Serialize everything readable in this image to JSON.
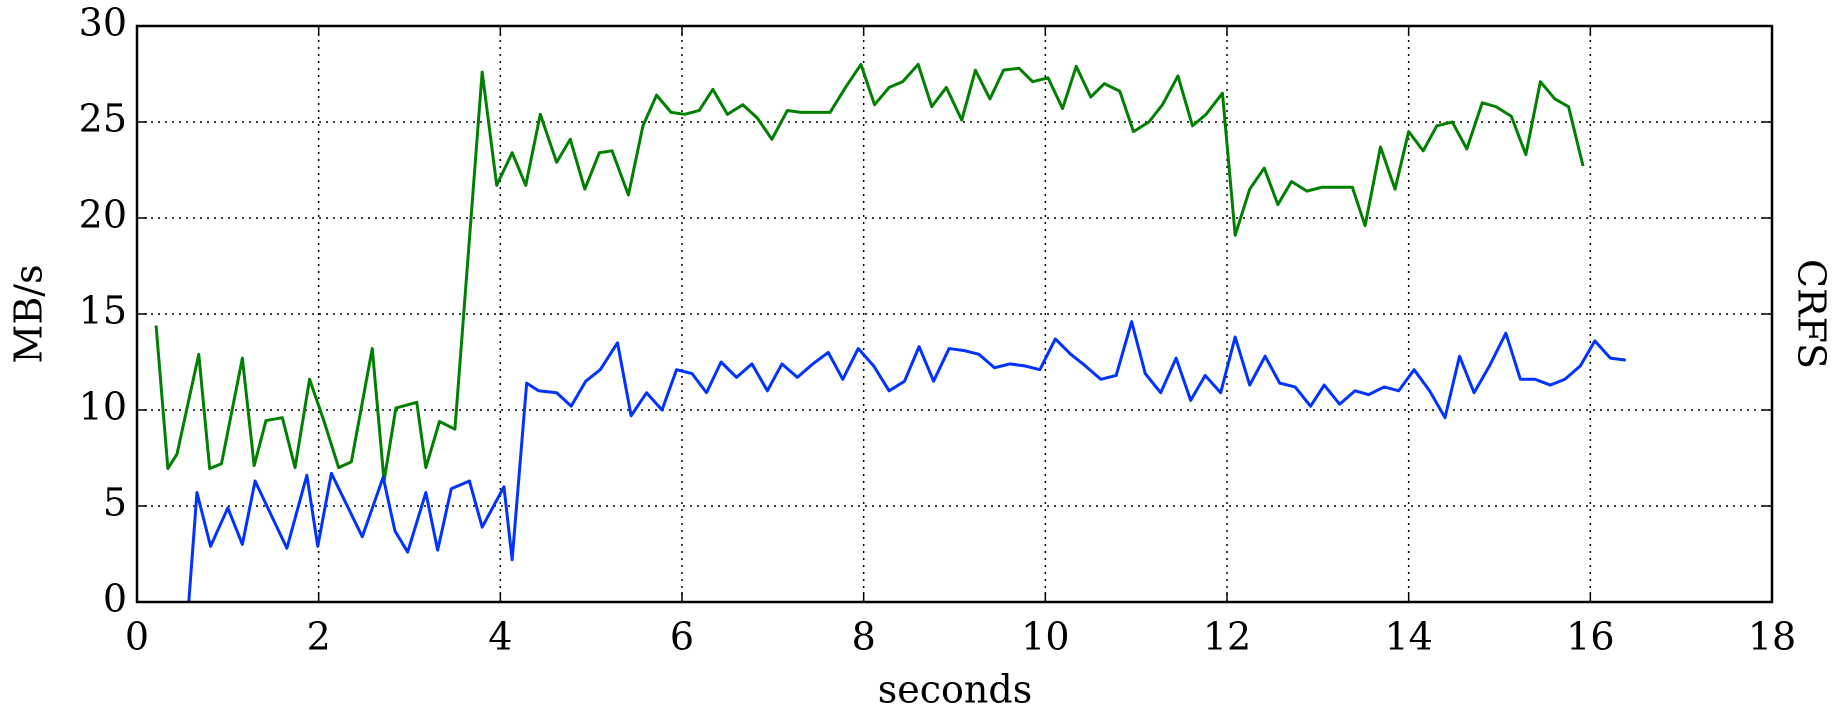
{
  "chart_data": {
    "type": "line",
    "xlabel": "seconds",
    "ylabel": "MB/s",
    "annotation": "CRFS",
    "xlim": [
      0,
      18
    ],
    "ylim": [
      0,
      30
    ],
    "xticks": [
      0,
      2,
      4,
      6,
      8,
      10,
      12,
      14,
      16,
      18
    ],
    "yticks": [
      0,
      5,
      10,
      15,
      20,
      25,
      30
    ],
    "grid": true,
    "series": [
      {
        "color": "#008000",
        "x": [
          0.21,
          0.34,
          0.44,
          0.68,
          0.8,
          0.93,
          1.16,
          1.29,
          1.42,
          1.6,
          1.74,
          1.9,
          2.06,
          2.22,
          2.36,
          2.59,
          2.72,
          2.85,
          3.08,
          3.18,
          3.33,
          3.5,
          3.8,
          3.96,
          4.13,
          4.28,
          4.44,
          4.62,
          4.77,
          4.93,
          5.09,
          5.23,
          5.41,
          5.57,
          5.72,
          5.88,
          6.03,
          6.19,
          6.34,
          6.5,
          6.67,
          6.83,
          6.99,
          7.16,
          7.31,
          7.48,
          7.63,
          7.8,
          7.97,
          8.12,
          8.28,
          8.43,
          8.6,
          8.75,
          8.91,
          9.08,
          9.23,
          9.39,
          9.54,
          9.71,
          9.86,
          10.03,
          10.19,
          10.34,
          10.5,
          10.65,
          10.82,
          10.97,
          11.14,
          11.29,
          11.46,
          11.62,
          11.77,
          11.95,
          12.09,
          12.25,
          12.41,
          12.56,
          12.71,
          12.88,
          13.04,
          13.19,
          13.38,
          13.52,
          13.69,
          13.85,
          14.0,
          14.16,
          14.31,
          14.48,
          14.64,
          14.81,
          14.96,
          15.13,
          15.29,
          15.45,
          15.61,
          15.76,
          15.92
        ],
        "values": [
          14.4,
          6.95,
          7.7,
          12.9,
          6.95,
          7.2,
          12.7,
          7.1,
          9.45,
          9.6,
          7.0,
          11.6,
          9.4,
          7.0,
          7.3,
          13.2,
          6.3,
          10.1,
          10.4,
          7.0,
          9.4,
          9.0,
          27.6,
          21.7,
          23.4,
          21.7,
          25.4,
          22.9,
          24.1,
          21.5,
          23.4,
          23.5,
          21.2,
          24.8,
          26.4,
          25.5,
          25.4,
          25.6,
          26.7,
          25.4,
          25.9,
          25.2,
          24.1,
          25.6,
          25.5,
          25.5,
          25.5,
          26.8,
          28.0,
          25.9,
          26.8,
          27.1,
          28.0,
          25.8,
          26.8,
          25.1,
          27.7,
          26.2,
          27.7,
          27.8,
          27.1,
          27.3,
          25.7,
          27.9,
          26.3,
          27.0,
          26.6,
          24.5,
          25.0,
          25.9,
          27.4,
          24.8,
          25.4,
          26.5,
          19.1,
          21.5,
          22.6,
          20.7,
          21.9,
          21.4,
          21.6,
          21.6,
          21.6,
          19.6,
          23.7,
          21.5,
          24.5,
          23.5,
          24.8,
          25.0,
          23.6,
          26.0,
          25.8,
          25.3,
          23.3,
          27.1,
          26.2,
          25.8,
          22.7
        ]
      },
      {
        "color": "#0033ff",
        "x": [
          0.57,
          0.66,
          0.81,
          1.0,
          1.16,
          1.3,
          1.48,
          1.65,
          1.87,
          1.99,
          2.14,
          2.48,
          2.71,
          2.84,
          2.98,
          3.18,
          3.31,
          3.46,
          3.66,
          3.8,
          4.04,
          4.13,
          4.29,
          4.42,
          4.62,
          4.78,
          4.94,
          5.1,
          5.29,
          5.44,
          5.61,
          5.78,
          5.94,
          6.11,
          6.27,
          6.43,
          6.6,
          6.77,
          6.94,
          7.1,
          7.27,
          7.44,
          7.61,
          7.77,
          7.94,
          8.11,
          8.28,
          8.45,
          8.61,
          8.77,
          8.94,
          9.1,
          9.27,
          9.44,
          9.61,
          9.77,
          9.94,
          10.11,
          10.28,
          10.44,
          10.61,
          10.78,
          10.95,
          11.1,
          11.27,
          11.44,
          11.6,
          11.76,
          11.93,
          12.09,
          12.25,
          12.42,
          12.58,
          12.75,
          12.92,
          13.07,
          13.24,
          13.41,
          13.56,
          13.73,
          13.89,
          14.06,
          14.23,
          14.4,
          14.56,
          14.72,
          14.89,
          15.07,
          15.23,
          15.39,
          15.56,
          15.72,
          15.89,
          16.05,
          16.22,
          16.39
        ],
        "values": [
          0,
          5.7,
          2.9,
          4.9,
          3.0,
          6.3,
          4.5,
          2.8,
          6.6,
          2.9,
          6.7,
          3.4,
          6.5,
          3.7,
          2.6,
          5.7,
          2.7,
          5.9,
          6.3,
          3.9,
          6.0,
          2.2,
          11.4,
          11.0,
          10.9,
          10.2,
          11.5,
          12.1,
          13.5,
          9.7,
          10.9,
          10.0,
          12.1,
          11.9,
          10.9,
          12.5,
          11.7,
          12.4,
          11.0,
          12.4,
          11.7,
          12.4,
          13.0,
          11.6,
          13.2,
          12.3,
          11.0,
          11.5,
          13.3,
          11.5,
          13.2,
          13.1,
          12.9,
          12.2,
          12.4,
          12.3,
          12.1,
          13.7,
          12.9,
          12.3,
          11.6,
          11.8,
          14.6,
          11.9,
          10.9,
          12.7,
          10.5,
          11.8,
          10.9,
          13.8,
          11.3,
          12.8,
          11.4,
          11.2,
          10.2,
          11.3,
          10.3,
          11.0,
          10.8,
          11.2,
          11.0,
          12.1,
          11.0,
          9.6,
          12.8,
          10.9,
          12.3,
          14.0,
          11.6,
          11.6,
          11.3,
          11.6,
          12.3,
          13.6,
          12.7,
          12.6
        ]
      }
    ]
  }
}
